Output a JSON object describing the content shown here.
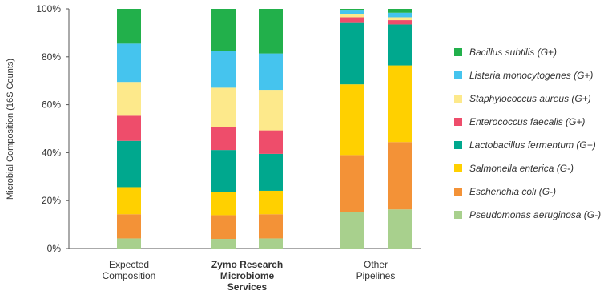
{
  "chart_data": {
    "type": "bar",
    "stacked": true,
    "ylabel": "Microbial Composition (16S Counts)",
    "ylim": [
      0,
      100
    ],
    "yticks": [
      "0%",
      "20%",
      "40%",
      "60%",
      "80%",
      "100%"
    ],
    "groups": [
      {
        "label_lines": [
          "Expected",
          "Composition"
        ],
        "bold": false,
        "bars": 1
      },
      {
        "label_lines": [
          "Zymo Research",
          "Microbiome",
          "Services"
        ],
        "bold": true,
        "bars": 2
      },
      {
        "label_lines": [
          "Other",
          "Pipelines"
        ],
        "bold": false,
        "bars": 2
      }
    ],
    "series": [
      {
        "name": "Pseudomonas aeruginosa (G-)",
        "color": "#a8d08d",
        "values": [
          4.2,
          4.0,
          4.2,
          15.3,
          16.3
        ]
      },
      {
        "name": "Escherichia coli  (G-)",
        "color": "#f39237",
        "values": [
          10.1,
          9.9,
          10.1,
          23.7,
          28.1
        ]
      },
      {
        "name": "Salmonella enterica (G-)",
        "color": "#ffd000",
        "values": [
          11.3,
          9.7,
          9.8,
          29.5,
          32.0
        ]
      },
      {
        "name": "Lactobacillus fermentum (G+)",
        "color": "#00a88e",
        "values": [
          19.3,
          17.5,
          15.4,
          25.6,
          17.1
        ]
      },
      {
        "name": "Enterococcus faecalis (G+)",
        "color": "#ee4d6b",
        "values": [
          10.5,
          9.5,
          9.8,
          2.4,
          1.8
        ]
      },
      {
        "name": "Staphylococcus aureus (G+)",
        "color": "#fde98b",
        "values": [
          14.1,
          16.5,
          16.9,
          1.2,
          1.2
        ]
      },
      {
        "name": "Listeria monocytogenes (G+)",
        "color": "#45c4ee",
        "values": [
          16.0,
          15.3,
          15.2,
          1.6,
          1.9
        ]
      },
      {
        "name": "Bacillus subtilis (G+)",
        "color": "#22b04b",
        "values": [
          14.5,
          17.6,
          18.6,
          0.7,
          1.6
        ]
      }
    ],
    "legend_position": "right",
    "grid": false
  }
}
